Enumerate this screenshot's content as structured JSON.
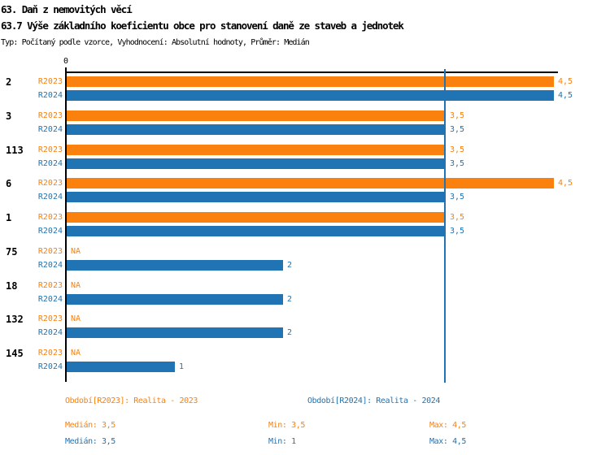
{
  "header": {
    "title": "63. Daň z nemovitých věcí",
    "subtitle": "63.7 Výše základního koeficientu obce pro stanovení daně ze staveb a jednotek",
    "meta": "Typ: Počítaný podle vzorce, Vyhodnocení: Absolutní hodnoty, Průměr: Medián"
  },
  "chart_data": {
    "type": "bar",
    "orientation": "horizontal",
    "categories": [
      "2",
      "3",
      "113",
      "6",
      "1",
      "75",
      "18",
      "132",
      "145"
    ],
    "series": [
      {
        "name": "R2023",
        "legend": "Období[R2023]: Realita - 2023",
        "color": "#fa810e",
        "values": [
          4.5,
          3.5,
          3.5,
          4.5,
          3.5,
          null,
          null,
          null,
          null
        ],
        "value_labels": [
          "4,5",
          "3,5",
          "3,5",
          "4,5",
          "3,5",
          "NA",
          "NA",
          "NA",
          "NA"
        ],
        "stats": {
          "median": "Medián: 3,5",
          "min": "Min: 3,5",
          "max": "Max: 4,5"
        }
      },
      {
        "name": "R2024",
        "legend": "Období[R2024]: Realita - 2024",
        "color": "#2174b3",
        "values": [
          4.5,
          3.5,
          3.5,
          3.5,
          3.5,
          2,
          2,
          2,
          1
        ],
        "value_labels": [
          "4,5",
          "3,5",
          "3,5",
          "3,5",
          "3,5",
          "2",
          "2",
          "2",
          "1"
        ],
        "stats": {
          "median": "Medián: 3,5",
          "min": "Min: 1",
          "max": "Max: 4,5"
        }
      }
    ],
    "na_label": "NA",
    "axis": {
      "zero_label": "0",
      "x_min": 0,
      "x_max": 4.54,
      "gridlines": false,
      "median_line_value": 3.5,
      "median_line_color": "#2174b3"
    },
    "legend_position": "bottom"
  }
}
